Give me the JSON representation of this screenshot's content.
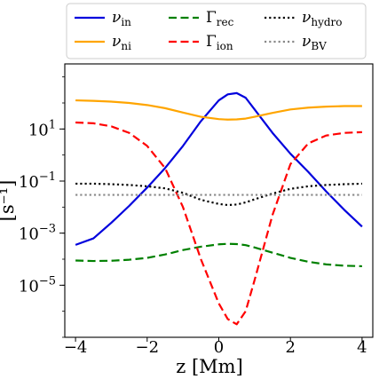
{
  "chart_data": {
    "type": "line",
    "title": "",
    "xlabel": "z [Mm]",
    "ylabel": "[s⁻¹]",
    "xlim": [
      -4.3,
      4.3
    ],
    "yscale": "log",
    "ylim_log10": [
      -7,
      3.5
    ],
    "x_ticks": [
      {
        "value": -4,
        "label": "−4"
      },
      {
        "value": -2,
        "label": "−2"
      },
      {
        "value": 0,
        "label": "0"
      },
      {
        "value": 2,
        "label": "2"
      },
      {
        "value": 4,
        "label": "4"
      }
    ],
    "y_ticks": [
      {
        "log10": 1,
        "base": "10",
        "exp": "1"
      },
      {
        "log10": -1,
        "base": "10",
        "exp": "−1"
      },
      {
        "log10": -3,
        "base": "10",
        "exp": "−3"
      },
      {
        "log10": -5,
        "base": "10",
        "exp": "−5"
      }
    ],
    "grid": false,
    "legend_placement": "above plot, three columns",
    "series": [
      {
        "name_main": "ν",
        "name_sub": "in",
        "color": "#0000dd",
        "dash": "solid",
        "x": [
          -4,
          -3.5,
          -3,
          -2.5,
          -2,
          -1.5,
          -1,
          -0.5,
          0,
          0.25,
          0.5,
          0.75,
          1,
          1.5,
          2,
          2.5,
          3,
          3.5,
          4
        ],
        "log10_y": [
          -3.45,
          -3.2,
          -2.6,
          -1.95,
          -1.25,
          -0.5,
          0.35,
          1.3,
          2.1,
          2.33,
          2.38,
          2.2,
          1.75,
          0.85,
          0.05,
          -0.65,
          -1.4,
          -2.1,
          -2.75
        ]
      },
      {
        "name_main": "ν",
        "name_sub": "ni",
        "color": "#ffa500",
        "dash": "solid",
        "x": [
          -4,
          -3.5,
          -3,
          -2.5,
          -2,
          -1.5,
          -1,
          -0.5,
          0,
          0.25,
          0.5,
          0.75,
          1,
          1.5,
          2,
          2.5,
          3,
          3.5,
          4
        ],
        "log10_y": [
          2.1,
          2.08,
          2.05,
          2.0,
          1.92,
          1.8,
          1.63,
          1.47,
          1.38,
          1.36,
          1.37,
          1.4,
          1.47,
          1.62,
          1.75,
          1.82,
          1.86,
          1.88,
          1.88
        ]
      },
      {
        "name_main": "Γ",
        "name_sub": "rec",
        "color": "#008000",
        "dash": "dashed",
        "x": [
          -4,
          -3.5,
          -3,
          -2.5,
          -2,
          -1.5,
          -1,
          -0.5,
          0,
          0.25,
          0.5,
          0.75,
          1,
          1.5,
          2,
          2.5,
          3,
          3.5,
          4
        ],
        "log10_y": [
          -4.05,
          -4.07,
          -4.06,
          -4.02,
          -3.95,
          -3.82,
          -3.65,
          -3.52,
          -3.43,
          -3.41,
          -3.42,
          -3.46,
          -3.55,
          -3.75,
          -3.95,
          -4.1,
          -4.2,
          -4.25,
          -4.27
        ]
      },
      {
        "name_main": "Γ",
        "name_sub": "ion",
        "color": "#ff0000",
        "dash": "dashed",
        "x": [
          -4,
          -3.5,
          -3,
          -2.5,
          -2,
          -1.5,
          -1,
          -0.5,
          0,
          0.25,
          0.5,
          0.75,
          1,
          1.5,
          2,
          2.5,
          3,
          3.5,
          4
        ],
        "log10_y": [
          1.25,
          1.22,
          1.1,
          0.85,
          0.35,
          -0.5,
          -2.0,
          -4.0,
          -5.7,
          -6.3,
          -6.5,
          -6.0,
          -4.8,
          -2.3,
          -0.35,
          0.45,
          0.75,
          0.85,
          0.88
        ]
      },
      {
        "name_main": "ν",
        "name_sub": "hydro",
        "color": "#000000",
        "dash": "dotted",
        "x": [
          -4,
          -3.5,
          -3,
          -2.5,
          -2,
          -1.5,
          -1,
          -0.5,
          0,
          0.25,
          0.5,
          0.75,
          1,
          1.5,
          2,
          2.5,
          3,
          3.5,
          4
        ],
        "log10_y": [
          -1.1,
          -1.1,
          -1.12,
          -1.15,
          -1.2,
          -1.28,
          -1.45,
          -1.72,
          -1.88,
          -1.92,
          -1.9,
          -1.82,
          -1.7,
          -1.48,
          -1.3,
          -1.2,
          -1.15,
          -1.12,
          -1.1
        ]
      },
      {
        "name_main": "ν",
        "name_sub": "BV",
        "color": "#888888",
        "dash": "dotted",
        "x": [
          -4,
          4
        ],
        "log10_y": [
          -1.53,
          -1.53
        ]
      }
    ]
  }
}
